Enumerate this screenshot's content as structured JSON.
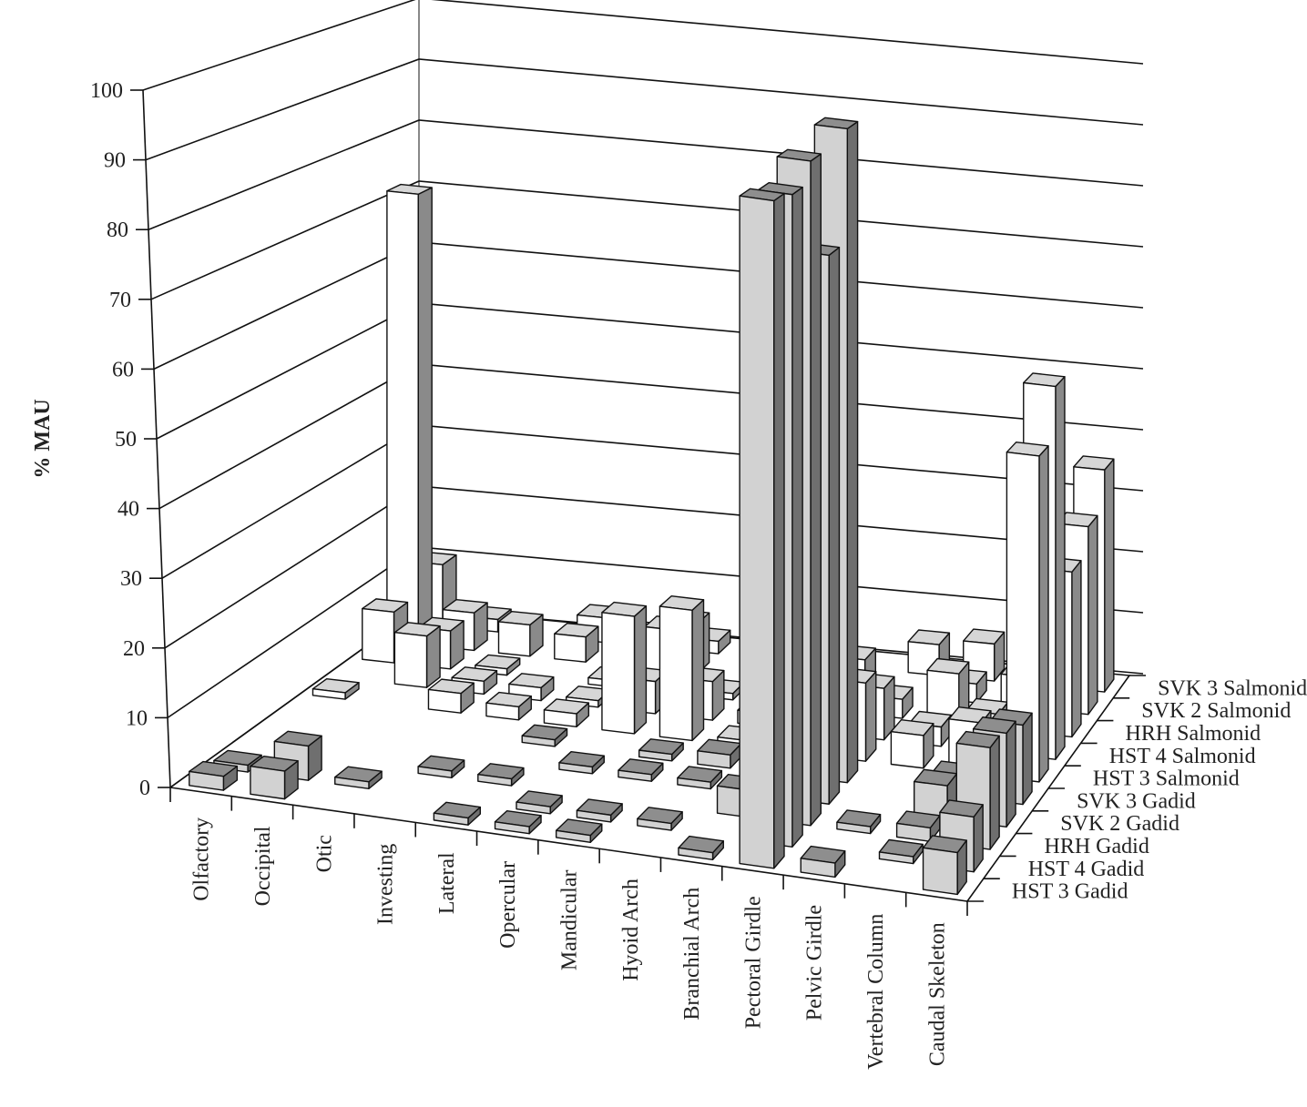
{
  "chart_data": {
    "type": "bar",
    "projection": "3d",
    "title": "",
    "xlabel": "",
    "ylabel": "% MAU",
    "ylim": [
      0,
      100
    ],
    "yticks": [
      0,
      10,
      20,
      30,
      40,
      50,
      60,
      70,
      80,
      90,
      100
    ],
    "grid": true,
    "legend": "none",
    "categories": [
      "Olfactory",
      "Occipital",
      "Otic",
      "Investing",
      "Lateral",
      "Opercular",
      "Mandicular",
      "Hyoid Arch",
      "Branchial Arch",
      "Pectoral Girdle",
      "Pelvic Girdle",
      "Vertebral Column",
      "Caudal Skeleton"
    ],
    "series": [
      {
        "name": "HST 3 Gadid",
        "group": "Gadid",
        "values": [
          2,
          4,
          0,
          0,
          1,
          1,
          1,
          0,
          1,
          96,
          2,
          0,
          6
        ]
      },
      {
        "name": "HST 4 Gadid",
        "group": "Gadid",
        "values": [
          1,
          5,
          1,
          0,
          0,
          1,
          1,
          1,
          0,
          95,
          0,
          1,
          8
        ]
      },
      {
        "name": "HRH Gadid",
        "group": "Gadid",
        "values": [
          0,
          0,
          0,
          1,
          1,
          0,
          0,
          0,
          4,
          98,
          1,
          2,
          15
        ]
      },
      {
        "name": "SVK 2 Gadid",
        "group": "Gadid",
        "values": [
          0,
          0,
          0,
          0,
          0,
          1,
          1,
          1,
          0,
          82,
          0,
          5,
          14
        ]
      },
      {
        "name": "SVK 3 Gadid",
        "group": "Gadid",
        "values": [
          0,
          0,
          0,
          0,
          1,
          0,
          1,
          2,
          0,
          99,
          0,
          3,
          12
        ]
      },
      {
        "name": "HST 3 Salmonid",
        "group": "Salmonid",
        "values": [
          1,
          0,
          3,
          2,
          2,
          18,
          20,
          1,
          6,
          12,
          5,
          8,
          50
        ]
      },
      {
        "name": "HST 4 Salmonid",
        "group": "Salmonid",
        "values": [
          0,
          8,
          2,
          2,
          1,
          5,
          6,
          2,
          1,
          8,
          3,
          6,
          58
        ]
      },
      {
        "name": "HRH Salmonid",
        "group": "Salmonid",
        "values": [
          8,
          6,
          1,
          0,
          1,
          10,
          1,
          0,
          1,
          3,
          8,
          2,
          26
        ]
      },
      {
        "name": "SVK 2 Salmonid",
        "group": "Salmonid",
        "values": [
          72,
          6,
          5,
          4,
          5,
          8,
          0,
          33,
          5,
          0,
          3,
          5,
          30
        ]
      },
      {
        "name": "SVK 3 Salmonid",
        "group": "Salmonid",
        "values": [
          10,
          2,
          0,
          4,
          2,
          2,
          5,
          0,
          0,
          5,
          6,
          6,
          36
        ]
      }
    ],
    "colors": {
      "Gadid": {
        "front": "#d2d2d2",
        "top": "#8e8e8e",
        "side": "#6f6f6f"
      },
      "Salmonid": {
        "front": "#ffffff",
        "top": "#d6d6d6",
        "side": "#8a8a8a"
      }
    }
  }
}
